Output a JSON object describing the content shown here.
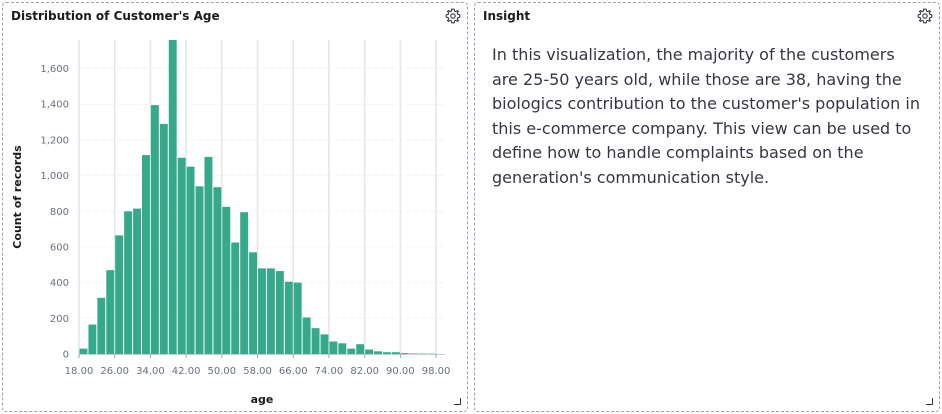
{
  "chart_panel": {
    "title": "Distribution of Customer's Age",
    "settings_icon": "gear-icon",
    "resize_icon": "resize-handle-icon"
  },
  "insight_panel": {
    "title": "Insight",
    "settings_icon": "gear-icon",
    "text": "In this visualization, the majority of the customers are 25-50 years old, while those are 38, having the biologics contribution to the customer's population in this e-commerce company. This view can be used to define how to handle complaints based on the generation's communication style."
  },
  "chart_data": {
    "type": "bar",
    "xlabel": "age",
    "ylabel": "Count of records",
    "xlim": [
      18,
      100
    ],
    "ylim": [
      0,
      1760
    ],
    "bin_width": 2,
    "x_ticks": [
      18,
      26,
      34,
      42,
      50,
      58,
      66,
      74,
      82,
      90,
      98
    ],
    "x_tick_labels": [
      "18.00",
      "26.00",
      "34.00",
      "42.00",
      "50.00",
      "58.00",
      "66.00",
      "74.00",
      "82.00",
      "90.00",
      "98.00"
    ],
    "y_ticks": [
      0,
      200,
      400,
      600,
      800,
      1000,
      1200,
      1400,
      1600
    ],
    "y_tick_labels": [
      "0",
      "200",
      "400",
      "600",
      "800",
      "1,000",
      "1,200",
      "1,400",
      "1,600"
    ],
    "bin_starts": [
      18,
      20,
      22,
      24,
      26,
      28,
      30,
      32,
      34,
      36,
      38,
      40,
      42,
      44,
      46,
      48,
      50,
      52,
      54,
      56,
      58,
      60,
      62,
      64,
      66,
      68,
      70,
      72,
      74,
      76,
      78,
      80,
      82,
      84,
      86,
      88,
      90,
      92,
      94,
      96
    ],
    "values": [
      30,
      165,
      315,
      470,
      665,
      800,
      815,
      1115,
      1395,
      1290,
      1760,
      1100,
      1050,
      940,
      1105,
      935,
      825,
      625,
      795,
      570,
      480,
      480,
      465,
      405,
      400,
      205,
      145,
      110,
      70,
      60,
      30,
      55,
      25,
      15,
      10,
      10,
      5,
      3,
      2,
      2
    ],
    "grid": "vertical",
    "color": "#37a98b"
  }
}
